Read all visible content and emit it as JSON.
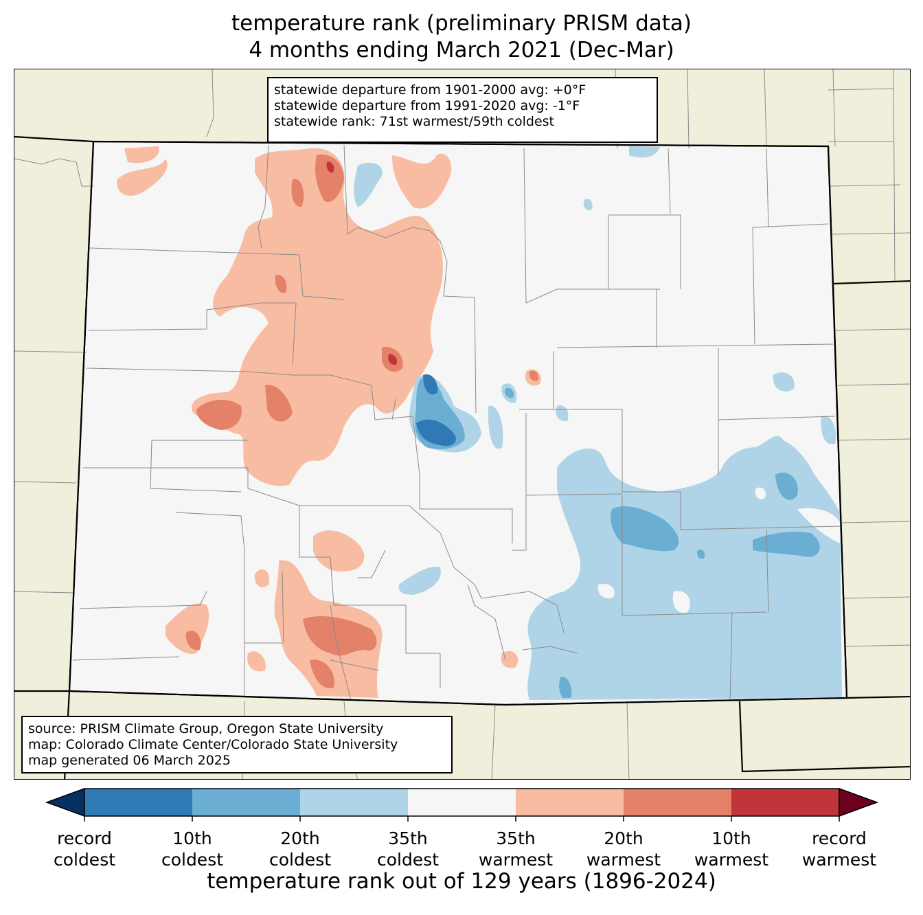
{
  "title": {
    "line1": "temperature rank (preliminary PRISM data)",
    "line2": "4 months ending March 2021 (Dec-Mar)"
  },
  "stats_box": {
    "line1": "statewide departure from 1901-2000 avg: +0°F",
    "line2": "statewide departure from 1991-2020 avg: -1°F",
    "line3": "statewide rank: 71st warmest/59th coldest"
  },
  "source_box": {
    "line1": "source: PRISM Climate Group, Oregon State University",
    "line2": "map: Colorado Climate Center/Colorado State University",
    "line3": "map generated 06 March 2025"
  },
  "colorbar": {
    "title": "temperature rank out of 129 years (1896-2024)",
    "labels": [
      {
        "l1": "record",
        "l2": "coldest"
      },
      {
        "l1": "10th",
        "l2": "coldest"
      },
      {
        "l1": "20th",
        "l2": "coldest"
      },
      {
        "l1": "35th",
        "l2": "coldest"
      },
      {
        "l1": "35th",
        "l2": "warmest"
      },
      {
        "l1": "20th",
        "l2": "warmest"
      },
      {
        "l1": "10th",
        "l2": "warmest"
      },
      {
        "l1": "record",
        "l2": "warmest"
      }
    ],
    "colors": {
      "below_record_coldest": "#053061",
      "record_to_10th_coldest": "#2f79b5",
      "10th_to_20th_coldest": "#6aaed3",
      "20th_to_35th_coldest": "#b0d4e7",
      "near_normal": "#f6f6f6",
      "35th_to_20th_warmest": "#f8bca2",
      "20th_to_10th_warmest": "#e38169",
      "10th_to_record_warmest": "#c0353a",
      "above_record_warmest": "#6d001f"
    }
  },
  "map_colors": {
    "land_outside": "#f0efdc",
    "state_border": "#000000",
    "county_lines": "#808080"
  }
}
